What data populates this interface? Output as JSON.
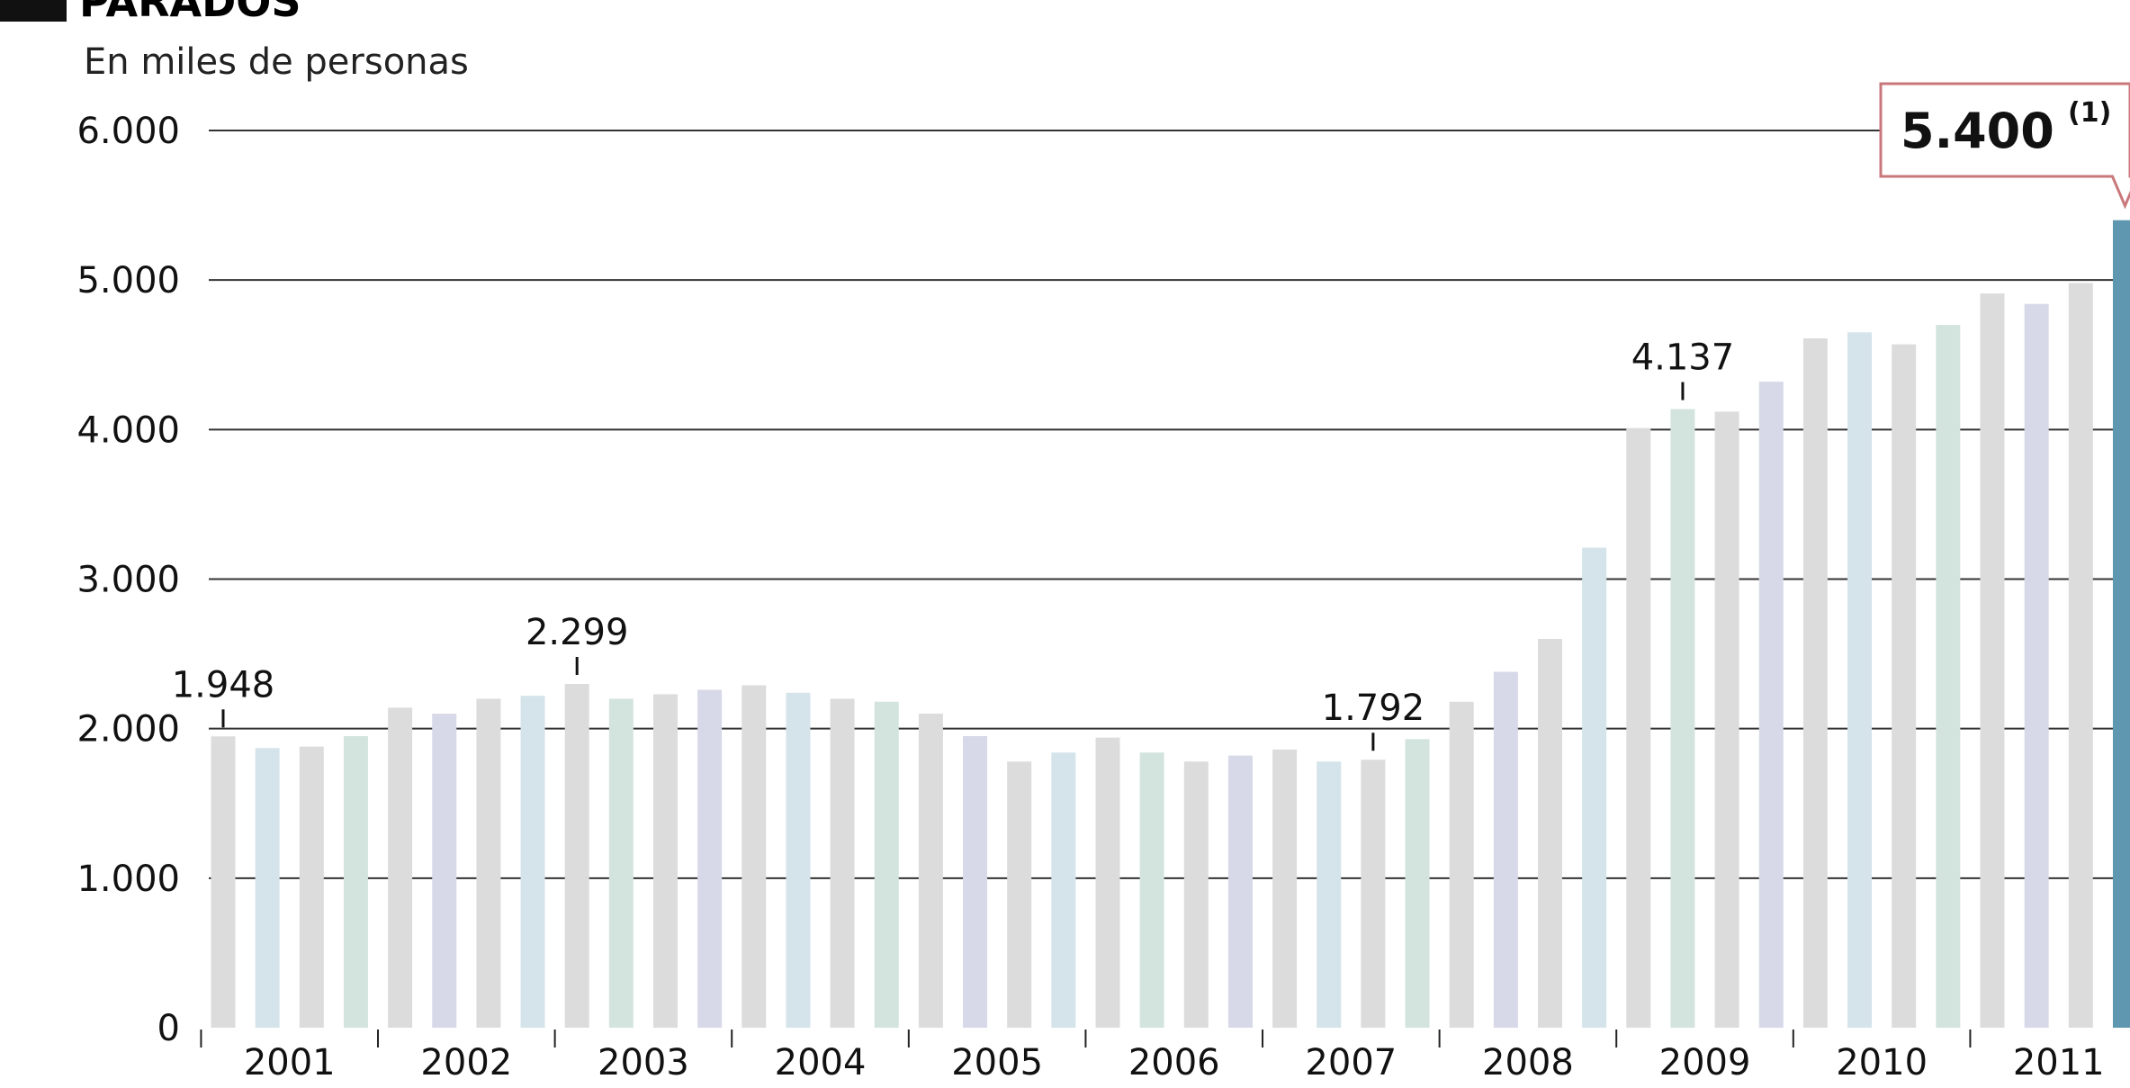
{
  "title": "PARADOS",
  "subtitle": "En miles de personas",
  "callout": {
    "value": "5.400",
    "note": "(1)"
  },
  "colors": {
    "bar_light": "#dcdcdc",
    "bar_tint_a": "#d4e4ea",
    "bar_tint_b": "#d3e4de",
    "bar_tint_c": "#d7d9e8",
    "bar_highlight": "#5f97b0",
    "callout_border": "#c9777a",
    "grid": "#333333"
  },
  "chart_data": {
    "type": "bar",
    "title": "PARADOS",
    "subtitle": "En miles de personas",
    "xlabel": "",
    "ylabel": "",
    "ylim": [
      0,
      6000
    ],
    "yticks": [
      0,
      1000,
      2000,
      3000,
      4000,
      5000,
      6000
    ],
    "ytick_labels": [
      "0",
      "1.000",
      "2.000",
      "3.000",
      "4.000",
      "5.000",
      "6.000"
    ],
    "years": [
      "2001",
      "2002",
      "2003",
      "2004",
      "2005",
      "2006",
      "2007",
      "2008",
      "2009",
      "2010",
      "2011"
    ],
    "quarters_per_year": 4,
    "values": [
      1948,
      1870,
      1880,
      1950,
      2140,
      2100,
      2200,
      2220,
      2299,
      2200,
      2230,
      2260,
      2290,
      2240,
      2200,
      2180,
      2100,
      1950,
      1780,
      1840,
      1940,
      1840,
      1780,
      1820,
      1860,
      1780,
      1792,
      1930,
      2180,
      2380,
      2600,
      3210,
      4010,
      4137,
      4120,
      4320,
      4610,
      4650,
      4570,
      4700,
      4910,
      4840,
      4980,
      5400
    ],
    "annotations": [
      {
        "index": 0,
        "label": "1.948"
      },
      {
        "index": 8,
        "label": "2.299"
      },
      {
        "index": 26,
        "label": "1.792"
      },
      {
        "index": 33,
        "label": "4.137"
      }
    ],
    "highlight_index": 43
  }
}
